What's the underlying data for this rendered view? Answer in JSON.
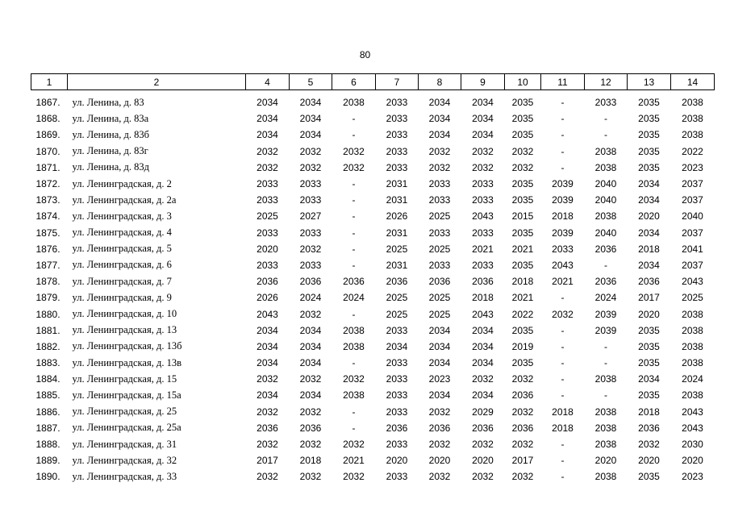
{
  "page_number": "80",
  "table": {
    "headers": [
      "1",
      "2",
      "4",
      "5",
      "6",
      "7",
      "8",
      "9",
      "10",
      "11",
      "12",
      "13",
      "14"
    ],
    "rows": [
      [
        "1867.",
        "ул. Ленина, д. 83",
        "2034",
        "2034",
        "2038",
        "2033",
        "2034",
        "2034",
        "2035",
        "-",
        "2033",
        "2035",
        "2038"
      ],
      [
        "1868.",
        "ул. Ленина, д. 83а",
        "2034",
        "2034",
        "-",
        "2033",
        "2034",
        "2034",
        "2035",
        "-",
        "-",
        "2035",
        "2038"
      ],
      [
        "1869.",
        "ул. Ленина, д. 83б",
        "2034",
        "2034",
        "-",
        "2033",
        "2034",
        "2034",
        "2035",
        "-",
        "-",
        "2035",
        "2038"
      ],
      [
        "1870.",
        "ул. Ленина, д. 83г",
        "2032",
        "2032",
        "2032",
        "2033",
        "2032",
        "2032",
        "2032",
        "-",
        "2038",
        "2035",
        "2022"
      ],
      [
        "1871.",
        "ул. Ленина, д. 83д",
        "2032",
        "2032",
        "2032",
        "2033",
        "2032",
        "2032",
        "2032",
        "-",
        "2038",
        "2035",
        "2023"
      ],
      [
        "1872.",
        "ул. Ленинградская, д. 2",
        "2033",
        "2033",
        "-",
        "2031",
        "2033",
        "2033",
        "2035",
        "2039",
        "2040",
        "2034",
        "2037"
      ],
      [
        "1873.",
        "ул. Ленинградская, д. 2а",
        "2033",
        "2033",
        "-",
        "2031",
        "2033",
        "2033",
        "2035",
        "2039",
        "2040",
        "2034",
        "2037"
      ],
      [
        "1874.",
        "ул. Ленинградская, д. 3",
        "2025",
        "2027",
        "-",
        "2026",
        "2025",
        "2043",
        "2015",
        "2018",
        "2038",
        "2020",
        "2040"
      ],
      [
        "1875.",
        "ул. Ленинградская, д. 4",
        "2033",
        "2033",
        "-",
        "2031",
        "2033",
        "2033",
        "2035",
        "2039",
        "2040",
        "2034",
        "2037"
      ],
      [
        "1876.",
        "ул. Ленинградская, д. 5",
        "2020",
        "2032",
        "-",
        "2025",
        "2025",
        "2021",
        "2021",
        "2033",
        "2036",
        "2018",
        "2041"
      ],
      [
        "1877.",
        "ул. Ленинградская, д. 6",
        "2033",
        "2033",
        "-",
        "2031",
        "2033",
        "2033",
        "2035",
        "2043",
        "-",
        "2034",
        "2037"
      ],
      [
        "1878.",
        "ул. Ленинградская, д. 7",
        "2036",
        "2036",
        "2036",
        "2036",
        "2036",
        "2036",
        "2018",
        "2021",
        "2036",
        "2036",
        "2043"
      ],
      [
        "1879.",
        "ул. Ленинградская, д. 9",
        "2026",
        "2024",
        "2024",
        "2025",
        "2025",
        "2018",
        "2021",
        "-",
        "2024",
        "2017",
        "2025"
      ],
      [
        "1880.",
        "ул. Ленинградская, д. 10",
        "2043",
        "2032",
        "-",
        "2025",
        "2025",
        "2043",
        "2022",
        "2032",
        "2039",
        "2020",
        "2038"
      ],
      [
        "1881.",
        "ул. Ленинградская, д. 13",
        "2034",
        "2034",
        "2038",
        "2033",
        "2034",
        "2034",
        "2035",
        "-",
        "2039",
        "2035",
        "2038"
      ],
      [
        "1882.",
        "ул. Ленинградская, д. 13б",
        "2034",
        "2034",
        "2038",
        "2034",
        "2034",
        "2034",
        "2019",
        "-",
        "-",
        "2035",
        "2038"
      ],
      [
        "1883.",
        "ул. Ленинградская, д. 13в",
        "2034",
        "2034",
        "-",
        "2033",
        "2034",
        "2034",
        "2035",
        "-",
        "-",
        "2035",
        "2038"
      ],
      [
        "1884.",
        "ул. Ленинградская, д. 15",
        "2032",
        "2032",
        "2032",
        "2033",
        "2023",
        "2032",
        "2032",
        "-",
        "2038",
        "2034",
        "2024"
      ],
      [
        "1885.",
        "ул. Ленинградская, д. 15а",
        "2034",
        "2034",
        "2038",
        "2033",
        "2034",
        "2034",
        "2036",
        "-",
        "-",
        "2035",
        "2038"
      ],
      [
        "1886.",
        "ул. Ленинградская, д. 25",
        "2032",
        "2032",
        "-",
        "2033",
        "2032",
        "2029",
        "2032",
        "2018",
        "2038",
        "2018",
        "2043"
      ],
      [
        "1887.",
        "ул. Ленинградская, д. 25а",
        "2036",
        "2036",
        "-",
        "2036",
        "2036",
        "2036",
        "2036",
        "2018",
        "2038",
        "2036",
        "2043"
      ],
      [
        "1888.",
        "ул. Ленинградская, д. 31",
        "2032",
        "2032",
        "2032",
        "2033",
        "2032",
        "2032",
        "2032",
        "-",
        "2038",
        "2032",
        "2030"
      ],
      [
        "1889.",
        "ул. Ленинградская, д. 32",
        "2017",
        "2018",
        "2021",
        "2020",
        "2020",
        "2020",
        "2017",
        "-",
        "2020",
        "2020",
        "2020"
      ],
      [
        "1890.",
        "ул. Ленинградская, д. 33",
        "2032",
        "2032",
        "2032",
        "2033",
        "2032",
        "2032",
        "2032",
        "-",
        "2038",
        "2035",
        "2023"
      ]
    ]
  }
}
